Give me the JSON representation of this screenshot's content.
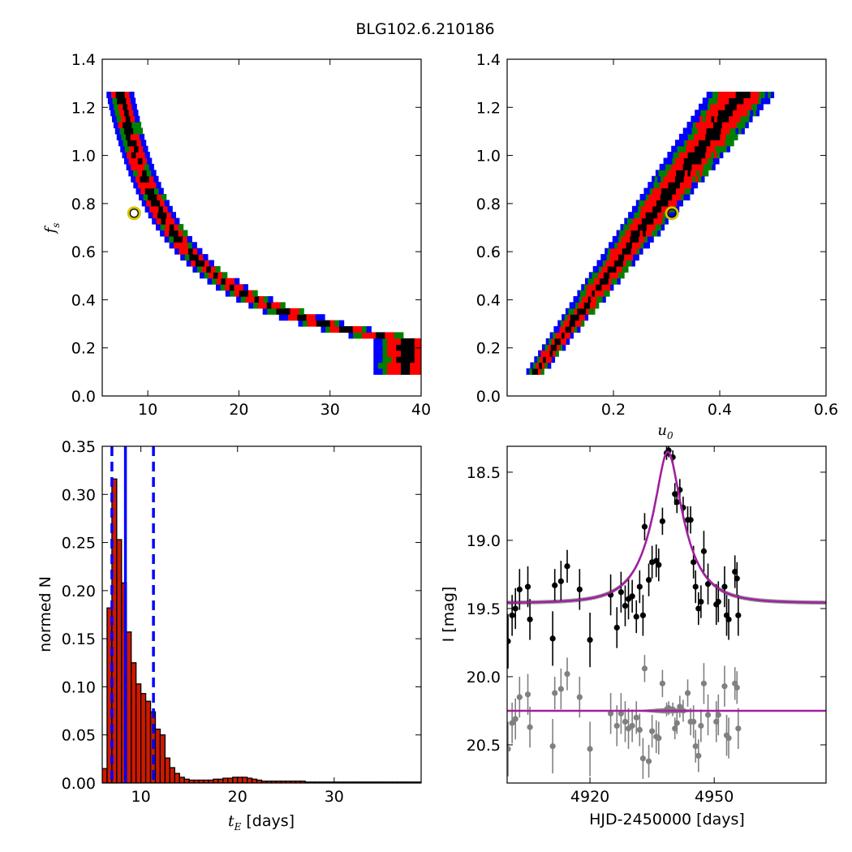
{
  "figure": {
    "title": "BLG102.6.210186"
  },
  "colors": {
    "sigma1": "#000000",
    "sigma2": "#ff0000",
    "sigma3": "#008000",
    "sigma4": "#0000ff",
    "best_fit_marker": "#d4c400",
    "hist_fill": "#cc1a00",
    "hist_lines": "#0000ff",
    "model": "#a020a0",
    "model_band": "#8a8a8a",
    "residual_points": "#808080"
  },
  "chart_data": [
    {
      "id": "tE_fs",
      "type": "heatmap",
      "title": "",
      "xlabel": "",
      "ylabel": "f",
      "ylabel_sub": "s",
      "xlim": [
        5,
        40
      ],
      "ylim": [
        0.0,
        1.4
      ],
      "xticks": [
        "10",
        "20",
        "30",
        "40"
      ],
      "yticks": [
        "0.0",
        "0.2",
        "0.4",
        "0.6",
        "0.8",
        "1.0",
        "1.2",
        "1.4"
      ],
      "best_fit": {
        "x": 8.5,
        "y": 0.76
      },
      "ridge": {
        "x_at_fs_1_2": 7.0,
        "x_at_fs_0_1": 36.0,
        "fs_min": 0.09,
        "fs_max": 1.25
      }
    },
    {
      "id": "u0_fs",
      "type": "heatmap",
      "title": "",
      "xlabel": "u",
      "xlabel_sub": "0",
      "ylabel": "",
      "xlim": [
        0.0,
        0.6
      ],
      "ylim": [
        0.0,
        1.4
      ],
      "xticks": [
        "0.2",
        "0.4",
        "0.6"
      ],
      "yticks": [
        "0.0",
        "0.2",
        "0.4",
        "0.6",
        "0.8",
        "1.0",
        "1.2",
        "1.4"
      ],
      "best_fit": {
        "x": 0.31,
        "y": 0.76
      },
      "ridge": {
        "u0_at_fs_0_1": 0.055,
        "u0_at_fs_1_25": 0.44,
        "fs_min": 0.09,
        "fs_max": 1.25
      }
    },
    {
      "id": "tE_hist",
      "type": "bar",
      "title": "",
      "xlabel": "t",
      "xlabel_sub": "E",
      "xlabel_suffix": " [days]",
      "ylabel": "normed N",
      "xlim": [
        6,
        39
      ],
      "ylim": [
        0.0,
        0.35
      ],
      "xticks": [
        "10",
        "20",
        "30"
      ],
      "yticks": [
        "0.00",
        "0.05",
        "0.10",
        "0.15",
        "0.20",
        "0.25",
        "0.30",
        "0.35"
      ],
      "bin_start": 6.0,
      "bin_width": 0.5,
      "values": [
        0.015,
        0.182,
        0.316,
        0.253,
        0.208,
        0.157,
        0.125,
        0.103,
        0.093,
        0.085,
        0.074,
        0.056,
        0.05,
        0.026,
        0.016,
        0.01,
        0.006,
        0.004,
        0.003,
        0.003,
        0.003,
        0.003,
        0.003,
        0.004,
        0.004,
        0.005,
        0.005,
        0.006,
        0.006,
        0.006,
        0.005,
        0.004,
        0.003,
        0.002,
        0.002,
        0.002,
        0.002,
        0.002,
        0.002,
        0.002,
        0.002,
        0.002,
        0.001,
        0.001,
        0.001,
        0.001,
        0.001,
        0.001,
        0.001,
        0.001,
        0.001,
        0.001,
        0.001,
        0.001,
        0.001,
        0.001,
        0.001,
        0.001,
        0.001,
        0.001,
        0.001,
        0.001,
        0.001,
        0.001,
        0.001,
        0.001
      ],
      "vlines": [
        {
          "x": 7.0,
          "style": "dashed"
        },
        {
          "x": 8.4,
          "style": "solid"
        },
        {
          "x": 11.3,
          "style": "dashed"
        }
      ]
    },
    {
      "id": "light_curve",
      "type": "scatter",
      "title": "",
      "xlabel": "HJD-2450000 [days]",
      "ylabel": "I [mag]",
      "xlim": [
        4900,
        4977
      ],
      "ylim": [
        20.78,
        18.31
      ],
      "xticks": [
        "4920",
        "4950"
      ],
      "yticks": [
        "18.5",
        "19.0",
        "19.5",
        "20.0",
        "20.5"
      ],
      "model": {
        "t0": 4938.8,
        "tE": 8.4,
        "u0": 0.31,
        "fs": 0.76,
        "I_base": 19.46,
        "residual_offset": 20.25
      },
      "series": [
        {
          "name": "",
          "color": "#000000",
          "points": [
            [
              4900.2,
              19.74,
              0.2
            ],
            [
              4901.2,
              19.55,
              0.15
            ],
            [
              4902.0,
              19.5,
              0.15
            ],
            [
              4903.0,
              19.36,
              0.15
            ],
            [
              4905.0,
              19.34,
              0.15
            ],
            [
              4905.5,
              19.58,
              0.15
            ],
            [
              4911.0,
              19.72,
              0.2
            ],
            [
              4911.5,
              19.33,
              0.12
            ],
            [
              4913.0,
              19.3,
              0.15
            ],
            [
              4914.5,
              19.19,
              0.12
            ],
            [
              4917.5,
              19.36,
              0.15
            ],
            [
              4920.0,
              19.73,
              0.2
            ],
            [
              4925.0,
              19.4,
              0.15
            ],
            [
              4926.5,
              19.64,
              0.15
            ],
            [
              4927.5,
              19.38,
              0.15
            ],
            [
              4928.5,
              19.48,
              0.15
            ],
            [
              4929.3,
              19.43,
              0.15
            ],
            [
              4930.2,
              19.41,
              0.12
            ],
            [
              4931.2,
              19.56,
              0.12
            ],
            [
              4932.0,
              19.34,
              0.12
            ],
            [
              4932.8,
              19.55,
              0.15
            ],
            [
              4933.2,
              18.9,
              0.1
            ],
            [
              4934.2,
              19.29,
              0.12
            ],
            [
              4935.0,
              19.16,
              0.12
            ],
            [
              4936.0,
              19.15,
              0.12
            ],
            [
              4936.6,
              19.18,
              0.12
            ],
            [
              4937.5,
              18.86,
              0.1
            ],
            [
              4938.5,
              18.36,
              0.05
            ],
            [
              4939.0,
              18.34,
              0.05
            ],
            [
              4940.0,
              18.39,
              0.05
            ],
            [
              4940.5,
              18.66,
              0.08
            ],
            [
              4941.0,
              18.72,
              0.08
            ],
            [
              4941.7,
              18.63,
              0.08
            ],
            [
              4942.5,
              18.76,
              0.08
            ],
            [
              4943.6,
              18.85,
              0.1
            ],
            [
              4944.3,
              18.85,
              0.1
            ],
            [
              4945.0,
              19.16,
              0.12
            ],
            [
              4945.5,
              19.34,
              0.12
            ],
            [
              4946.2,
              19.5,
              0.12
            ],
            [
              4946.8,
              19.45,
              0.12
            ],
            [
              4947.5,
              19.08,
              0.15
            ],
            [
              4948.5,
              19.32,
              0.15
            ],
            [
              4950.5,
              19.47,
              0.15
            ],
            [
              4951.0,
              19.45,
              0.15
            ],
            [
              4952.5,
              19.34,
              0.15
            ],
            [
              4953.0,
              19.55,
              0.15
            ],
            [
              4953.5,
              19.58,
              0.15
            ],
            [
              4955.0,
              19.23,
              0.12
            ],
            [
              4955.5,
              19.28,
              0.12
            ],
            [
              4955.8,
              19.55,
              0.15
            ]
          ]
        },
        {
          "name": "",
          "color": "#808080",
          "points": [
            [
              4900.2,
              20.53,
              0.2
            ],
            [
              4901.2,
              20.34,
              0.15
            ],
            [
              4902.0,
              20.31,
              0.15
            ],
            [
              4903.0,
              20.15,
              0.15
            ],
            [
              4905.0,
              20.13,
              0.15
            ],
            [
              4905.5,
              20.37,
              0.15
            ],
            [
              4911.0,
              20.51,
              0.2
            ],
            [
              4911.5,
              20.12,
              0.12
            ],
            [
              4913.0,
              20.09,
              0.15
            ],
            [
              4914.5,
              19.98,
              0.12
            ],
            [
              4917.5,
              20.15,
              0.15
            ],
            [
              4920.0,
              20.53,
              0.2
            ],
            [
              4925.0,
              20.27,
              0.15
            ],
            [
              4926.5,
              20.36,
              0.15
            ],
            [
              4927.5,
              20.27,
              0.15
            ],
            [
              4928.5,
              20.33,
              0.15
            ],
            [
              4929.3,
              20.38,
              0.15
            ],
            [
              4930.2,
              20.36,
              0.12
            ],
            [
              4931.2,
              20.3,
              0.12
            ],
            [
              4932.0,
              20.39,
              0.12
            ],
            [
              4932.8,
              20.6,
              0.15
            ],
            [
              4933.2,
              19.94,
              0.1
            ],
            [
              4934.2,
              20.62,
              0.12
            ],
            [
              4935.0,
              20.4,
              0.12
            ],
            [
              4936.0,
              20.44,
              0.12
            ],
            [
              4936.6,
              20.45,
              0.12
            ],
            [
              4937.5,
              20.05,
              0.1
            ],
            [
              4938.5,
              20.24,
              0.05
            ],
            [
              4939.0,
              20.23,
              0.05
            ],
            [
              4940.0,
              20.24,
              0.05
            ],
            [
              4940.5,
              20.38,
              0.08
            ],
            [
              4941.0,
              20.34,
              0.08
            ],
            [
              4941.7,
              20.22,
              0.08
            ],
            [
              4942.5,
              20.25,
              0.08
            ],
            [
              4943.6,
              20.12,
              0.1
            ],
            [
              4944.3,
              20.33,
              0.1
            ],
            [
              4945.0,
              20.33,
              0.12
            ],
            [
              4945.5,
              20.51,
              0.12
            ],
            [
              4946.2,
              20.58,
              0.12
            ],
            [
              4946.8,
              20.36,
              0.12
            ],
            [
              4947.5,
              20.05,
              0.15
            ],
            [
              4948.5,
              20.28,
              0.15
            ],
            [
              4950.5,
              20.33,
              0.15
            ],
            [
              4951.0,
              20.28,
              0.15
            ],
            [
              4952.5,
              20.07,
              0.15
            ],
            [
              4953.0,
              20.43,
              0.15
            ],
            [
              4953.5,
              20.45,
              0.15
            ],
            [
              4955.0,
              20.05,
              0.12
            ],
            [
              4955.5,
              20.08,
              0.12
            ],
            [
              4955.8,
              20.38,
              0.15
            ]
          ]
        }
      ]
    }
  ]
}
